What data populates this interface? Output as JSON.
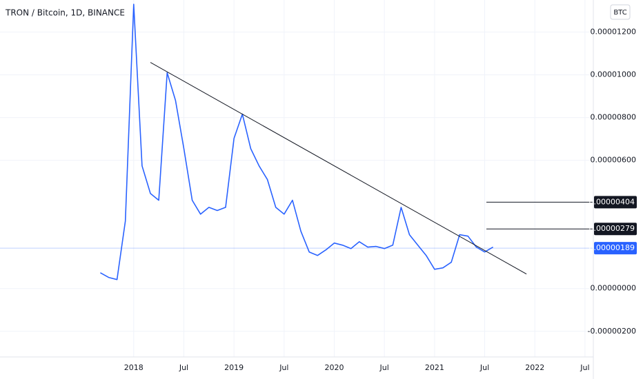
{
  "chart_data": {
    "type": "line",
    "title": "TRON / Bitcoin, 1D, BINANCE",
    "currency": "BTC",
    "color": "#2962ff",
    "x": [
      "2017-09",
      "2017-10",
      "2017-11",
      "2017-12",
      "2018-01",
      "2018-02",
      "2018-03",
      "2018-04",
      "2018-05",
      "2018-06",
      "2018-07",
      "2018-08",
      "2018-09",
      "2018-10",
      "2018-11",
      "2018-12",
      "2019-01",
      "2019-02",
      "2019-03",
      "2019-04",
      "2019-05",
      "2019-06",
      "2019-07",
      "2019-08",
      "2019-09",
      "2019-10",
      "2019-11",
      "2019-12",
      "2020-01",
      "2020-02",
      "2020-03",
      "2020-04",
      "2020-05",
      "2020-06",
      "2020-07",
      "2020-08",
      "2020-09",
      "2020-10",
      "2020-11",
      "2020-12",
      "2021-01",
      "2021-02",
      "2021-03",
      "2021-04",
      "2021-05",
      "2021-06",
      "2021-07",
      "2021-08"
    ],
    "values": [
      7.4e-07,
      5.2e-07,
      4.2e-07,
      3.16e-06,
      1.33e-05,
      5.74e-06,
      4.45e-06,
      4.13e-06,
      1.01e-05,
      8.8e-06,
      6.55e-06,
      4.13e-06,
      3.48e-06,
      3.8e-06,
      3.65e-06,
      3.8e-06,
      7.03e-06,
      8.16e-06,
      6.55e-06,
      5.74e-06,
      5.1e-06,
      3.8e-06,
      3.48e-06,
      4.13e-06,
      2.68e-06,
      1.71e-06,
      1.55e-06,
      1.81e-06,
      2.13e-06,
      2.03e-06,
      1.87e-06,
      2.19e-06,
      1.94e-06,
      1.97e-06,
      1.87e-06,
      2.03e-06,
      3.8e-06,
      2.52e-06,
      2.03e-06,
      1.55e-06,
      9e-07,
      9.7e-07,
      1.23e-06,
      2.52e-06,
      2.45e-06,
      1.94e-06,
      1.71e-06,
      1.94e-06
    ],
    "xlim": [
      "2016-09",
      "2022-08"
    ],
    "xticks": [
      {
        "value": "2018-01",
        "label": "2018"
      },
      {
        "value": "2018-07",
        "label": "Jul"
      },
      {
        "value": "2019-01",
        "label": "2019"
      },
      {
        "value": "2019-07",
        "label": "Jul"
      },
      {
        "value": "2020-01",
        "label": "2020"
      },
      {
        "value": "2020-07",
        "label": "Jul"
      },
      {
        "value": "2021-01",
        "label": "2021"
      },
      {
        "value": "2021-07",
        "label": "Jul"
      },
      {
        "value": "2022-01",
        "label": "2022"
      },
      {
        "value": "2022-07",
        "label": "Jul"
      }
    ],
    "ylim": [
      -3.2e-06,
      1.35e-05
    ],
    "yticks": [
      {
        "value": 1.2e-05,
        "label": "0.00001200"
      },
      {
        "value": 1e-05,
        "label": "0.00001000"
      },
      {
        "value": 8e-06,
        "label": "0.00000800"
      },
      {
        "value": 6e-06,
        "label": "0.00000600"
      },
      {
        "value": 0,
        "label": "0.00000000"
      },
      {
        "value": -2e-06,
        "label": "-0.00000200"
      }
    ],
    "grid": true,
    "trendline": {
      "x": [
        "2018-03",
        "2021-12"
      ],
      "values": [
        1.058e-05,
        6.8e-07
      ]
    },
    "levels": [
      {
        "value": 4.04e-06,
        "label": "0.00000404"
      },
      {
        "value": 2.79e-06,
        "label": "0.00000279"
      }
    ],
    "last_price": {
      "value": 1.89e-06,
      "label": "0.00000189"
    }
  }
}
